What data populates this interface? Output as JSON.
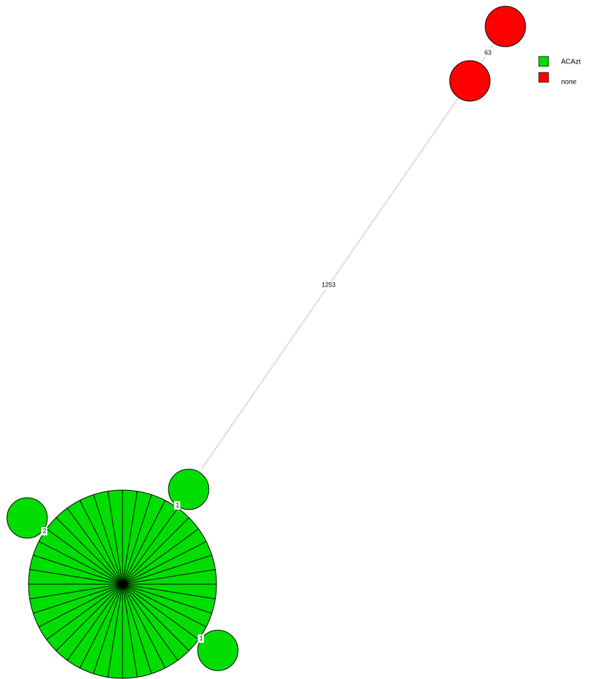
{
  "edges": [
    {
      "label": "63"
    },
    {
      "label": "1253"
    },
    {
      "label": "1"
    },
    {
      "label": "2"
    },
    {
      "label": "1"
    }
  ],
  "legend": [
    {
      "name": "ACAzt",
      "color": "#00dd00"
    },
    {
      "name": "none",
      "color": "#ff0000"
    }
  ]
}
